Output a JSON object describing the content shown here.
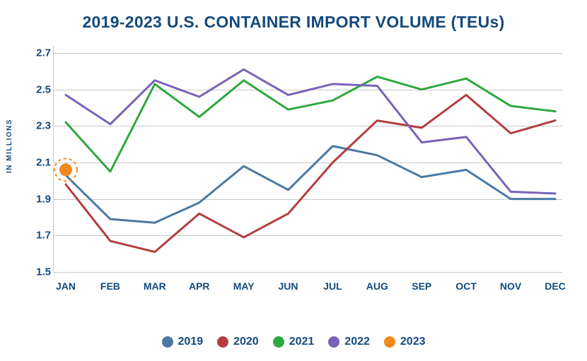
{
  "title": "2019-2023 U.S. CONTAINER IMPORT VOLUME (TEUs)",
  "y_axis_label": "IN MILLIONS",
  "chart": {
    "type": "line",
    "categories": [
      "JAN",
      "FEB",
      "MAR",
      "APR",
      "MAY",
      "JUN",
      "JUL",
      "AUG",
      "SEP",
      "OCT",
      "NOV",
      "DEC"
    ],
    "ylim": [
      1.5,
      2.7
    ],
    "y_ticks": [
      1.5,
      1.7,
      1.9,
      2.1,
      2.3,
      2.5,
      2.7
    ],
    "grid_color": "#c9c9c9",
    "background_color": "#ffffff",
    "line_width": 3,
    "title_fontsize": 23,
    "title_color": "#144a7c",
    "tick_fontsize": 15,
    "tick_color": "#144a7c",
    "series": [
      {
        "label": "2019",
        "color": "#4a7aa3",
        "values": [
          2.03,
          1.79,
          1.77,
          1.88,
          2.08,
          1.95,
          2.19,
          2.14,
          2.02,
          2.06,
          1.9,
          1.9
        ]
      },
      {
        "label": "2020",
        "color": "#b43e3e",
        "values": [
          1.98,
          1.67,
          1.61,
          1.82,
          1.69,
          1.82,
          2.1,
          2.33,
          2.29,
          2.47,
          2.26,
          2.33
        ]
      },
      {
        "label": "2021",
        "color": "#2fa83f",
        "values": [
          2.32,
          2.05,
          2.53,
          2.35,
          2.55,
          2.39,
          2.44,
          2.57,
          2.5,
          2.56,
          2.41,
          2.38
        ]
      },
      {
        "label": "2022",
        "color": "#7a62b8",
        "values": [
          2.47,
          2.31,
          2.55,
          2.46,
          2.61,
          2.47,
          2.53,
          2.52,
          2.21,
          2.24,
          1.94,
          1.93
        ]
      },
      {
        "label": "2023",
        "color": "#ee8a1f",
        "single_point": true,
        "value": 2.06,
        "marker_radius": 9,
        "halo_radius": 16,
        "halo_stroke": "#ee8a1f",
        "halo_dash": "4,4"
      }
    ]
  },
  "legend": [
    {
      "label": "2019",
      "color": "#4a7aa3"
    },
    {
      "label": "2020",
      "color": "#b43e3e"
    },
    {
      "label": "2021",
      "color": "#2fa83f"
    },
    {
      "label": "2022",
      "color": "#7a62b8"
    },
    {
      "label": "2023",
      "color": "#ee8a1f"
    }
  ]
}
